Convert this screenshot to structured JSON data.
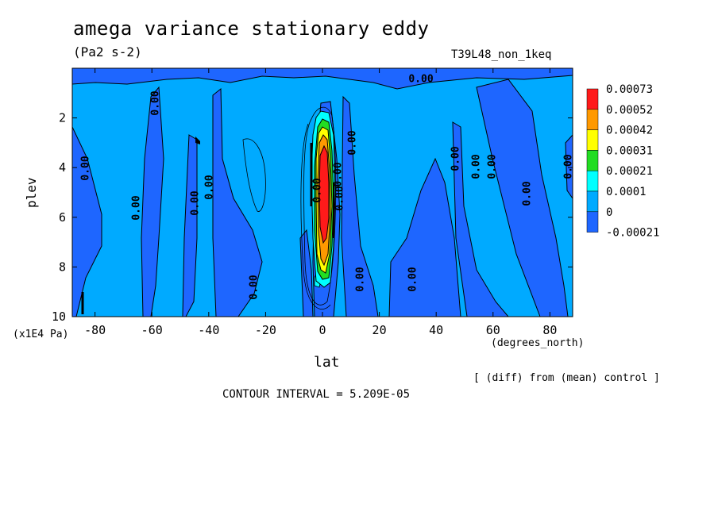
{
  "chart_data": {
    "type": "heatmap",
    "title": "amega variance stationary eddy",
    "units": "(Pa2 s-2)",
    "run_label": "T39L48_non_1keq",
    "xlabel": "lat",
    "x_unit": "(degrees_north)",
    "ylabel": "plev",
    "y_unit": "(x1E4 Pa)",
    "xlim": [
      -88,
      88
    ],
    "ylim": [
      0,
      10
    ],
    "y_inverted": true,
    "x_ticks": [
      "-80",
      "-60",
      "-40",
      "-20",
      "0",
      "20",
      "40",
      "60",
      "80"
    ],
    "y_ticks": [
      "2",
      "4",
      "6",
      "8",
      "10"
    ],
    "colorbar": {
      "levels": [
        "0.00073",
        "0.00052",
        "0.00042",
        "0.00031",
        "0.00021",
        "0.0001",
        "0",
        "-0.00021"
      ],
      "colors": [
        "#ff1a1a",
        "#ff9900",
        "#ffff00",
        "#22dd22",
        "#00ffff",
        "#00aaff",
        "#1e66ff"
      ]
    },
    "contour_labels": [
      "0.00",
      "0.00",
      "0.00",
      "0.00",
      "0.00",
      "0.00",
      "0.00",
      "0.00",
      "0.00",
      "0.00",
      "0.00",
      "0.00",
      "0.00",
      "0.00",
      "0.00",
      "0.00",
      "0.00",
      "0.00"
    ],
    "footer_diff": "[ (diff) from (mean) control ]",
    "contour_interval": "CONTOUR INTERVAL = 5.209E-05",
    "grid": false
  }
}
